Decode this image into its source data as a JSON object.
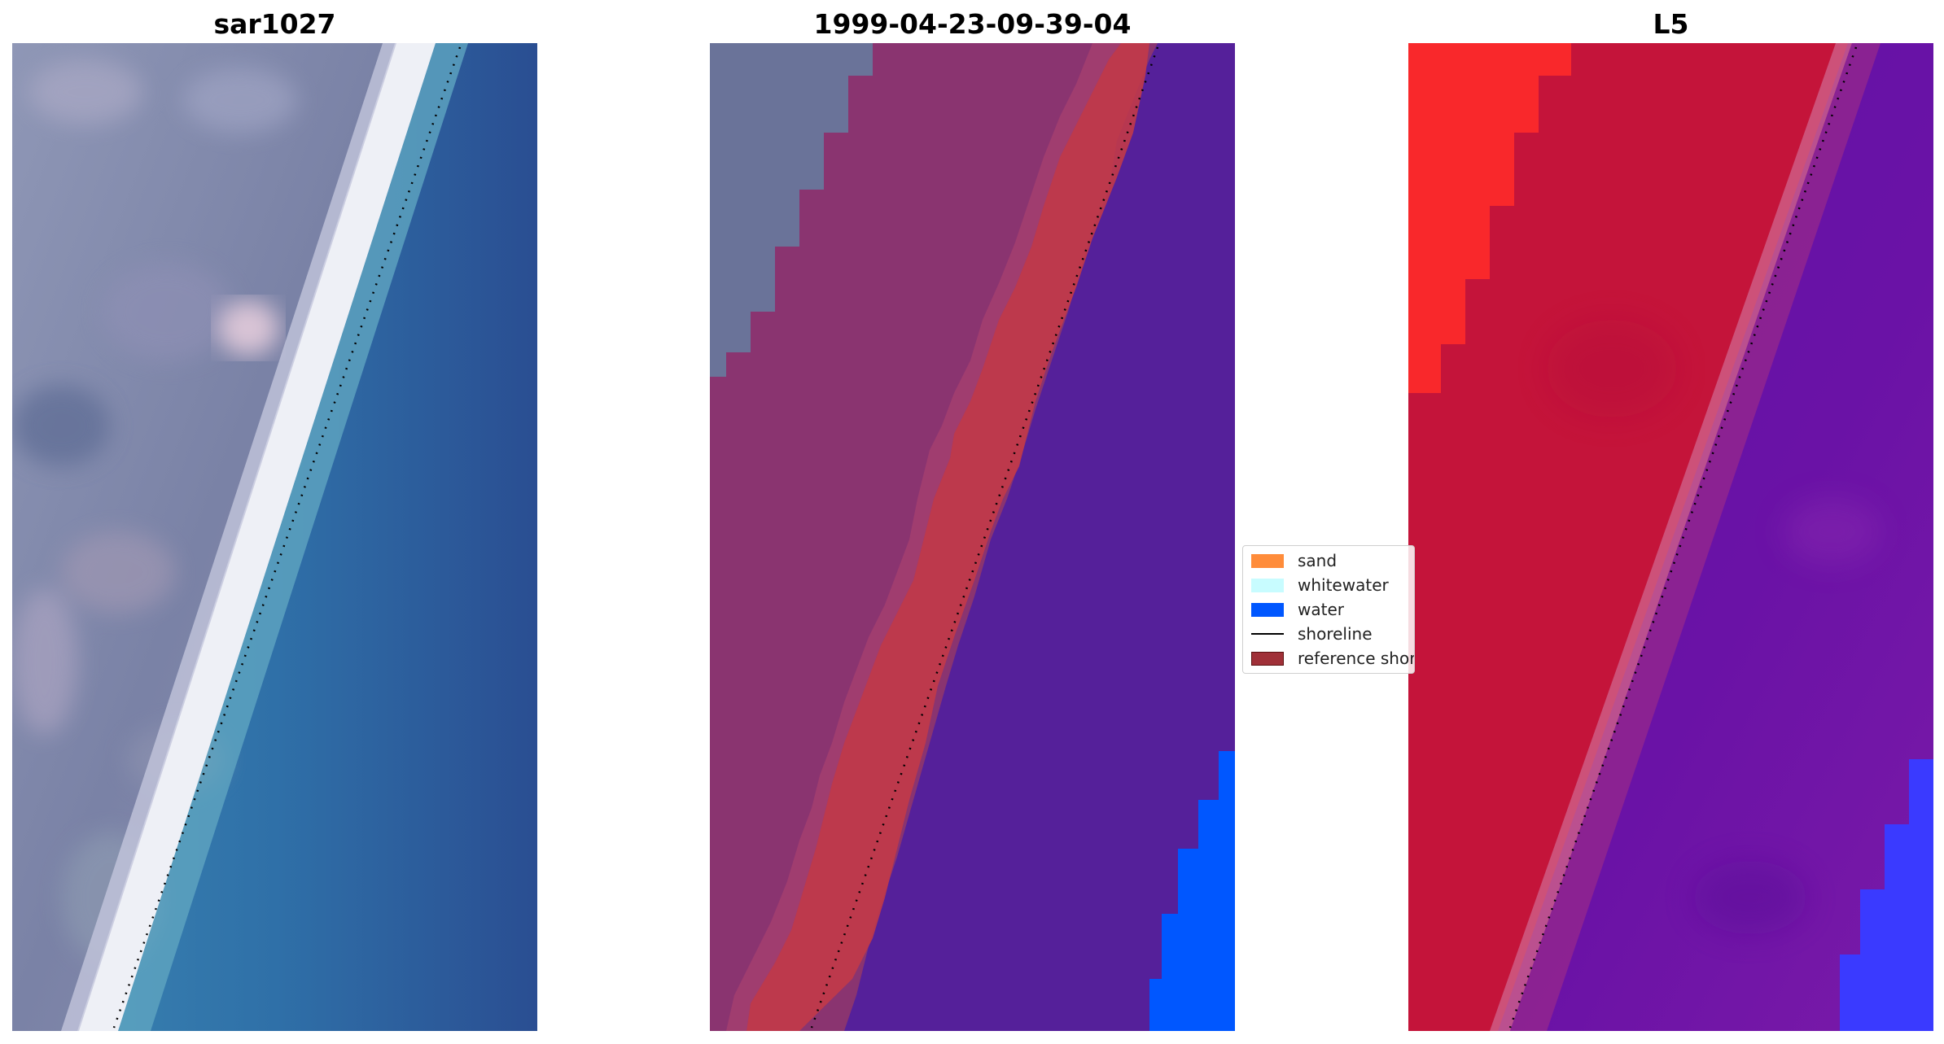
{
  "panels": [
    {
      "id": "left",
      "title": "sar1027"
    },
    {
      "id": "mid",
      "title": "1999-04-23-09-39-04"
    },
    {
      "id": "right",
      "title": "L5"
    }
  ],
  "legend": {
    "items": [
      {
        "label": "sand",
        "kind": "patch",
        "color": "#ff8c3a"
      },
      {
        "label": "whitewater",
        "kind": "patch",
        "color": "#c8fcff"
      },
      {
        "label": "water",
        "kind": "patch",
        "color": "#0057ff"
      },
      {
        "label": "shoreline",
        "kind": "line",
        "color": "#000000"
      },
      {
        "label": "reference shoreline",
        "kind": "patch",
        "color": "#a03038"
      }
    ]
  },
  "colors": {
    "land_rgb": "#7f86a8",
    "land_classified": "#8a3470",
    "sand_overlay": "#c23a48",
    "water_classified": "#55209a",
    "water_blue": "#0057ff",
    "ocean_rgb": "#2f6aa3",
    "mndwi_land": "#c4143a",
    "mndwi_water": "#6a10a8",
    "mndwi_bright_blue": "#3a3aff"
  }
}
